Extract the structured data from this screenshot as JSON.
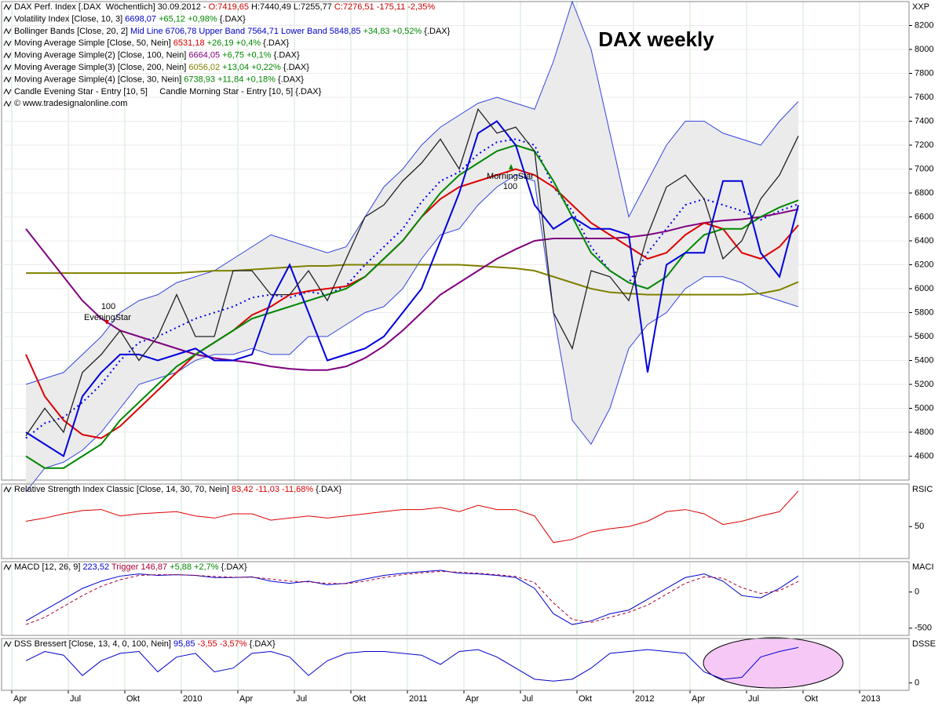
{
  "chart_data": [
    {
      "type": "line",
      "title": "DAX weekly",
      "x": [
        "2009-04",
        "2009-05",
        "2009-06",
        "2009-07",
        "2009-08",
        "2009-09",
        "2009-10",
        "2009-11",
        "2009-12",
        "2010-01",
        "2010-02",
        "2010-03",
        "2010-04",
        "2010-05",
        "2010-06",
        "2010-07",
        "2010-08",
        "2010-09",
        "2010-10",
        "2010-11",
        "2010-12",
        "2011-01",
        "2011-02",
        "2011-03",
        "2011-04",
        "2011-05",
        "2011-06",
        "2011-07",
        "2011-08",
        "2011-09",
        "2011-10",
        "2011-11",
        "2011-12",
        "2012-01",
        "2012-02",
        "2012-03",
        "2012-04",
        "2012-05",
        "2012-06",
        "2012-07",
        "2012-08",
        "2012-09"
      ],
      "panel_label": "XXP",
      "header": [
        [
          {
            "text": "DAX Perf. Index [.DAX  Wöchentlich] 30.09.2012 - ",
            "color": "#000000"
          },
          {
            "text": "O:7419,65",
            "color": "#cc0000"
          },
          {
            "text": " H:7440,49 L:7255,77 ",
            "color": "#000000"
          },
          {
            "text": "C:7276,51 -175,11 -2,35%",
            "color": "#cc0000"
          }
        ],
        [
          {
            "text": "Volatility Index [Close, 10, 3] ",
            "color": "#000000"
          },
          {
            "text": "6698,07",
            "color": "#0000cc"
          },
          {
            "text": " +65,12 +0,98%",
            "color": "#008800"
          },
          {
            "text": " {.DAX}",
            "color": "#000000"
          }
        ],
        [
          {
            "text": "Bollinger Bands [Close, 20, 2] ",
            "color": "#000000"
          },
          {
            "text": "Mid Line 6706,78 Upper Band 7564,71 Lower Band 5848,85",
            "color": "#0000cc"
          },
          {
            "text": " +34,83 +0,52%",
            "color": "#008800"
          },
          {
            "text": " {.DAX}",
            "color": "#000000"
          }
        ],
        [
          {
            "text": "Moving Average Simple [Close, 50, Nein] ",
            "color": "#000000"
          },
          {
            "text": "6531,18",
            "color": "#dd0000"
          },
          {
            "text": " +26,19 +0,4%",
            "color": "#008800"
          },
          {
            "text": " {.DAX}",
            "color": "#000000"
          }
        ],
        [
          {
            "text": "Moving Average Simple(2) [Close, 100, Nein] ",
            "color": "#000000"
          },
          {
            "text": "6664,05",
            "color": "#800080"
          },
          {
            "text": " +6,75 +0,1%",
            "color": "#008800"
          },
          {
            "text": " {.DAX}",
            "color": "#000000"
          }
        ],
        [
          {
            "text": "Moving Average Simple(3) [Close, 200, Nein] ",
            "color": "#000000"
          },
          {
            "text": "6056,02",
            "color": "#808000"
          },
          {
            "text": " +13,04 +0,22%",
            "color": "#008800"
          },
          {
            "text": " {.DAX}",
            "color": "#000000"
          }
        ],
        [
          {
            "text": "Moving Average Simple(4) [Close, 30, Nein] ",
            "color": "#000000"
          },
          {
            "text": "6738,93",
            "color": "#008800"
          },
          {
            "text": " +11,84 +0,18%",
            "color": "#008800"
          },
          {
            "text": " {.DAX}",
            "color": "#000000"
          }
        ],
        [
          {
            "text": "Candle Evening Star - Entry [10, 5]     Candle Morning Star - Entry [10, 5] {.DAX}",
            "color": "#000000"
          }
        ],
        [
          {
            "text": "© www.tradesignalonline.com",
            "color": "#000000"
          }
        ]
      ],
      "annotations": [
        "100",
        "EveningStar",
        "MorningStar",
        "100"
      ],
      "ylim": [
        4400,
        8400
      ],
      "yticks": [
        4600,
        4800,
        5000,
        5200,
        5400,
        5600,
        5800,
        6000,
        6200,
        6400,
        6600,
        6800,
        7000,
        7200,
        7400,
        7600,
        7800,
        8000,
        8200
      ],
      "grid": true,
      "series": [
        {
          "color": "#3344dd",
          "width": 1,
          "band_fill": "#ebebeb",
          "values": [
            5200,
            5250,
            5300,
            5450,
            5600,
            5800,
            5900,
            5950,
            6050,
            6100,
            6150,
            6250,
            6350,
            6450,
            6400,
            6350,
            6300,
            6350,
            6600,
            6850,
            7000,
            7200,
            7350,
            7450,
            7550,
            7600,
            7550,
            7500,
            7900,
            8400,
            8000,
            7300,
            6600,
            6900,
            7200,
            7400,
            7400,
            7300,
            7250,
            7200,
            7400,
            7565
          ]
        },
        {
          "color": "#3344dd",
          "width": 1,
          "values": [
            4300,
            4500,
            4550,
            4650,
            4800,
            5000,
            5200,
            5250,
            5300,
            5400,
            5450,
            5450,
            5500,
            5450,
            5450,
            5600,
            5600,
            5700,
            5800,
            5850,
            6000,
            6250,
            6450,
            6500,
            6700,
            6850,
            6950,
            6900,
            5800,
            4900,
            4700,
            5000,
            5500,
            5700,
            5800,
            6000,
            6100,
            6100,
            6050,
            5950,
            5900,
            5849
          ]
        },
        {
          "color": "#0000ee",
          "width": 2,
          "dash": "2,4",
          "values": [
            4750,
            4875,
            4925,
            5050,
            5200,
            5400,
            5550,
            5600,
            5675,
            5750,
            5800,
            5850,
            5925,
            5950,
            5925,
            5975,
            5950,
            6025,
            6200,
            6350,
            6500,
            6725,
            6900,
            6975,
            7125,
            7225,
            7250,
            7200,
            6850,
            6650,
            6350,
            6150,
            6050,
            6300,
            6500,
            6700,
            6750,
            6700,
            6650,
            6575,
            6650,
            6707
          ]
        },
        {
          "color": "#808000",
          "width": 2,
          "values": [
            6130,
            6130,
            6130,
            6130,
            6130,
            6130,
            6130,
            6130,
            6130,
            6140,
            6150,
            6150,
            6160,
            6170,
            6180,
            6190,
            6190,
            6200,
            6200,
            6200,
            6200,
            6200,
            6200,
            6200,
            6190,
            6180,
            6170,
            6150,
            6100,
            6050,
            6000,
            5970,
            5960,
            5950,
            5950,
            5950,
            5950,
            5950,
            5950,
            5960,
            5990,
            6056
          ]
        },
        {
          "color": "#800080",
          "width": 2,
          "values": [
            6500,
            6300,
            6100,
            5900,
            5750,
            5650,
            5600,
            5550,
            5500,
            5450,
            5420,
            5400,
            5380,
            5350,
            5330,
            5320,
            5320,
            5350,
            5420,
            5520,
            5650,
            5800,
            5950,
            6050,
            6150,
            6250,
            6330,
            6400,
            6420,
            6420,
            6420,
            6420,
            6430,
            6450,
            6480,
            6520,
            6550,
            6570,
            6580,
            6600,
            6630,
            6664
          ]
        },
        {
          "color": "#dd0000",
          "width": 2,
          "values": [
            5450,
            5100,
            4900,
            4780,
            4750,
            4850,
            5000,
            5150,
            5300,
            5450,
            5550,
            5650,
            5780,
            5850,
            5950,
            5980,
            6000,
            6020,
            6100,
            6250,
            6400,
            6600,
            6750,
            6850,
            6900,
            6950,
            7000,
            6950,
            6850,
            6700,
            6550,
            6450,
            6350,
            6250,
            6300,
            6450,
            6550,
            6500,
            6300,
            6250,
            6350,
            6531
          ]
        },
        {
          "color": "#008800",
          "width": 2,
          "values": [
            4600,
            4500,
            4500,
            4600,
            4700,
            4900,
            5050,
            5200,
            5350,
            5450,
            5550,
            5650,
            5750,
            5800,
            5850,
            5900,
            5950,
            6000,
            6100,
            6250,
            6400,
            6600,
            6800,
            6950,
            7050,
            7150,
            7200,
            7150,
            6900,
            6600,
            6300,
            6150,
            6050,
            6000,
            6100,
            6300,
            6450,
            6500,
            6500,
            6600,
            6680,
            6739
          ]
        },
        {
          "color": "#0000dd",
          "width": 2,
          "values": [
            4800,
            4700,
            4600,
            5100,
            5300,
            5450,
            5450,
            5400,
            5450,
            5500,
            5400,
            5400,
            5450,
            5900,
            6200,
            5800,
            5400,
            5450,
            5500,
            5600,
            5800,
            6000,
            6400,
            6800,
            7300,
            7400,
            7200,
            6700,
            6500,
            6600,
            6500,
            6500,
            6450,
            5300,
            6200,
            6300,
            6300,
            6900,
            6900,
            6300,
            6100,
            6698
          ]
        },
        {
          "color": "#222222",
          "width": 1.3,
          "values": [
            4770,
            5000,
            4800,
            5300,
            5450,
            5650,
            5400,
            5600,
            5950,
            5600,
            5600,
            6150,
            6150,
            5950,
            5950,
            6150,
            5900,
            6250,
            6600,
            6700,
            6900,
            7050,
            7250,
            7000,
            7500,
            7300,
            7350,
            7150,
            5800,
            5500,
            6150,
            6100,
            5900,
            6450,
            6850,
            6950,
            6750,
            6250,
            6400,
            6750,
            6950,
            7276.51
          ]
        }
      ]
    },
    {
      "type": "line",
      "panel_label": "RSIC",
      "header": [
        [
          {
            "text": "Relative Strength Index Classic [Close, 14, 30, 70, Nein] ",
            "color": "#000000"
          },
          {
            "text": "83,42 -11,03 -11,68%",
            "color": "#dd0000"
          },
          {
            "text": " {.DAX}",
            "color": "#000000"
          }
        ]
      ],
      "ylim": [
        20,
        90
      ],
      "yticks": [
        50
      ],
      "series": [
        {
          "color": "#dd0000",
          "width": 1,
          "values": [
            55,
            58,
            62,
            65,
            66,
            60,
            62,
            63,
            64,
            60,
            58,
            62,
            62,
            56,
            58,
            60,
            58,
            60,
            62,
            64,
            66,
            66,
            68,
            64,
            70,
            66,
            66,
            60,
            35,
            38,
            45,
            48,
            50,
            55,
            64,
            66,
            62,
            52,
            55,
            60,
            64,
            83.42
          ]
        }
      ]
    },
    {
      "type": "line",
      "panel_label": "MACI",
      "header": [
        [
          {
            "text": "MACD [12, 26, 9] ",
            "color": "#000000"
          },
          {
            "text": "223,52",
            "color": "#0000cc"
          },
          {
            "text": " Trigger 146,87",
            "color": "#aa0033"
          },
          {
            "text": " +5,88 +2,7%",
            "color": "#008800"
          },
          {
            "text": " {.DAX}",
            "color": "#000000"
          }
        ]
      ],
      "ylim": [
        -600,
        420
      ],
      "yticks": [
        0,
        -500
      ],
      "series": [
        {
          "color": "#0000cc",
          "width": 1,
          "values": [
            -400,
            -250,
            -100,
            50,
            150,
            220,
            250,
            230,
            240,
            230,
            200,
            200,
            210,
            150,
            120,
            150,
            100,
            120,
            180,
            230,
            260,
            280,
            300,
            260,
            250,
            230,
            200,
            50,
            -300,
            -450,
            -400,
            -300,
            -250,
            -100,
            50,
            200,
            250,
            150,
            -50,
            -80,
            50,
            223.52
          ]
        },
        {
          "color": "#aa0033",
          "width": 1,
          "dash": "4,3",
          "values": [
            -450,
            -350,
            -200,
            -50,
            80,
            170,
            230,
            240,
            240,
            230,
            215,
            205,
            205,
            180,
            150,
            140,
            120,
            115,
            150,
            200,
            240,
            265,
            285,
            275,
            260,
            240,
            215,
            130,
            -150,
            -380,
            -420,
            -350,
            -280,
            -180,
            -30,
            120,
            210,
            190,
            60,
            -20,
            20,
            146.87
          ]
        }
      ]
    },
    {
      "type": "line",
      "panel_label": "DSSE",
      "header": [
        [
          {
            "text": "DSS Bressert [Close, 13, 4, 0, 100, Nein] ",
            "color": "#000000"
          },
          {
            "text": "95,85",
            "color": "#0000cc"
          },
          {
            "text": " -3,55 -3,57%",
            "color": "#dd0000"
          },
          {
            "text": " {.DAX}",
            "color": "#000000"
          }
        ]
      ],
      "ylim": [
        -20,
        120
      ],
      "yticks": [
        0
      ],
      "xticks": [
        {
          "value": "2009-04",
          "label": "Apr"
        },
        {
          "value": "2009-07",
          "label": "Jul"
        },
        {
          "value": "2009-10",
          "label": "Okt"
        },
        {
          "value": "2010-01",
          "label": "2010"
        },
        {
          "value": "2010-04",
          "label": "Apr"
        },
        {
          "value": "2010-07",
          "label": "Jul"
        },
        {
          "value": "2010-10",
          "label": "Okt"
        },
        {
          "value": "2011-01",
          "label": "2011"
        },
        {
          "value": "2011-04",
          "label": "Apr"
        },
        {
          "value": "2011-07",
          "label": "Jul"
        },
        {
          "value": "2011-10",
          "label": "Okt"
        },
        {
          "value": "2012-01",
          "label": "2012"
        },
        {
          "value": "2012-04",
          "label": "Apr"
        },
        {
          "value": "2012-07",
          "label": "Jul"
        },
        {
          "value": "2012-10",
          "label": "Okt"
        },
        {
          "value": "2013-01",
          "label": "2013"
        }
      ],
      "series": [
        {
          "color": "#0000cc",
          "width": 1,
          "values": [
            60,
            85,
            75,
            20,
            60,
            80,
            85,
            30,
            70,
            80,
            30,
            40,
            80,
            85,
            70,
            20,
            60,
            80,
            85,
            85,
            80,
            75,
            50,
            85,
            90,
            70,
            40,
            10,
            5,
            10,
            40,
            80,
            85,
            90,
            85,
            80,
            30,
            10,
            15,
            70,
            85,
            95.85
          ]
        }
      ]
    }
  ]
}
